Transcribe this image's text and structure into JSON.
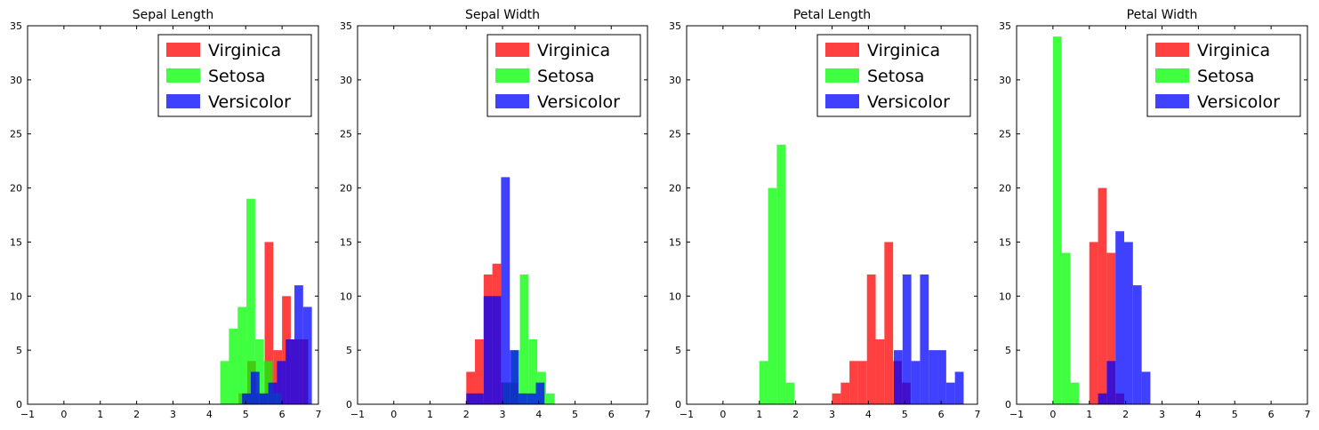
{
  "colors": {
    "Virginica": "#ff0000",
    "Setosa": "#00ff00",
    "Versicolor": "#0000ff"
  },
  "legend_placement": "top-right",
  "chart_data": [
    {
      "type": "histogram",
      "title": "Sepal Length",
      "xlim": [
        -1,
        7
      ],
      "ylim": [
        0,
        35
      ],
      "xticks": [
        "−1",
        "0",
        "1",
        "2",
        "3",
        "4",
        "5",
        "6",
        "7"
      ],
      "yticks": [
        "0",
        "5",
        "10",
        "15",
        "20",
        "25",
        "30",
        "35"
      ],
      "bin_width": 0.24,
      "series": [
        {
          "name": "Virginica",
          "bins": [
            [
              4.8,
              1
            ],
            [
              5.04,
              4
            ],
            [
              5.28,
              1
            ],
            [
              5.52,
              15
            ],
            [
              5.76,
              5
            ],
            [
              6.0,
              10
            ],
            [
              6.24,
              6
            ],
            [
              6.48,
              6
            ]
          ]
        },
        {
          "name": "Setosa",
          "bins": [
            [
              4.3,
              4
            ],
            [
              4.54,
              7
            ],
            [
              4.78,
              9
            ],
            [
              5.02,
              19
            ],
            [
              5.26,
              6
            ],
            [
              5.5,
              4
            ],
            [
              5.74,
              1
            ]
          ]
        },
        {
          "name": "Versicolor",
          "bins": [
            [
              4.9,
              1
            ],
            [
              5.14,
              3
            ],
            [
              5.38,
              1
            ],
            [
              5.62,
              2
            ],
            [
              5.86,
              4
            ],
            [
              6.1,
              6
            ],
            [
              6.34,
              11
            ],
            [
              6.58,
              9
            ]
          ]
        }
      ]
    },
    {
      "type": "histogram",
      "title": "Sepal Width",
      "xlim": [
        -1,
        7
      ],
      "ylim": [
        0,
        35
      ],
      "xticks": [
        "−1",
        "0",
        "1",
        "2",
        "3",
        "4",
        "5",
        "6",
        "7"
      ],
      "yticks": [
        "0",
        "5",
        "10",
        "15",
        "20",
        "25",
        "30",
        "35"
      ],
      "bin_width": 0.24,
      "series": [
        {
          "name": "Virginica",
          "bins": [
            [
              2.0,
              3
            ],
            [
              2.24,
              6
            ],
            [
              2.48,
              12
            ],
            [
              2.72,
              13
            ],
            [
              2.96,
              2
            ],
            [
              3.2,
              2
            ]
          ]
        },
        {
          "name": "Setosa",
          "bins": [
            [
              3.0,
              2
            ],
            [
              3.24,
              5
            ],
            [
              3.48,
              12
            ],
            [
              3.72,
              6
            ],
            [
              3.96,
              3
            ],
            [
              4.2,
              1
            ]
          ]
        },
        {
          "name": "Versicolor",
          "bins": [
            [
              2.0,
              1
            ],
            [
              2.24,
              1
            ],
            [
              2.48,
              10
            ],
            [
              2.72,
              10
            ],
            [
              2.96,
              21
            ],
            [
              3.2,
              5
            ],
            [
              3.44,
              1
            ],
            [
              3.68,
              1
            ],
            [
              3.92,
              2
            ]
          ]
        }
      ]
    },
    {
      "type": "histogram",
      "title": "Petal Length",
      "xlim": [
        -1,
        7
      ],
      "ylim": [
        0,
        35
      ],
      "xticks": [
        "−1",
        "0",
        "1",
        "2",
        "3",
        "4",
        "5",
        "6",
        "7"
      ],
      "yticks": [
        "0",
        "5",
        "10",
        "15",
        "20",
        "25",
        "30",
        "35"
      ],
      "bin_width": 0.24,
      "series": [
        {
          "name": "Virginica",
          "bins": [
            [
              3.0,
              1
            ],
            [
              3.24,
              2
            ],
            [
              3.48,
              4
            ],
            [
              3.72,
              4
            ],
            [
              3.96,
              12
            ],
            [
              4.2,
              6
            ],
            [
              4.44,
              15
            ],
            [
              4.68,
              4
            ],
            [
              4.92,
              2
            ]
          ]
        },
        {
          "name": "Setosa",
          "bins": [
            [
              1.0,
              4
            ],
            [
              1.24,
              20
            ],
            [
              1.48,
              24
            ],
            [
              1.72,
              2
            ]
          ]
        },
        {
          "name": "Versicolor",
          "bins": [
            [
              4.7,
              5
            ],
            [
              4.94,
              12
            ],
            [
              5.18,
              4
            ],
            [
              5.42,
              12
            ],
            [
              5.66,
              5
            ],
            [
              5.9,
              5
            ],
            [
              6.14,
              2
            ],
            [
              6.38,
              3
            ]
          ]
        }
      ]
    },
    {
      "type": "histogram",
      "title": "Petal Width",
      "xlim": [
        -1,
        7
      ],
      "ylim": [
        0,
        35
      ],
      "xticks": [
        "−1",
        "0",
        "1",
        "2",
        "3",
        "4",
        "5",
        "6",
        "7"
      ],
      "yticks": [
        "0",
        "5",
        "10",
        "15",
        "20",
        "25",
        "30",
        "35"
      ],
      "bin_width": 0.24,
      "series": [
        {
          "name": "Virginica",
          "bins": [
            [
              1.0,
              15
            ],
            [
              1.24,
              20
            ],
            [
              1.48,
              14
            ],
            [
              1.72,
              1
            ]
          ]
        },
        {
          "name": "Setosa",
          "bins": [
            [
              0.0,
              34
            ],
            [
              0.24,
              14
            ],
            [
              0.48,
              2
            ]
          ]
        },
        {
          "name": "Versicolor",
          "bins": [
            [
              1.24,
              1
            ],
            [
              1.48,
              4
            ],
            [
              1.72,
              16
            ],
            [
              1.96,
              15
            ],
            [
              2.2,
              11
            ],
            [
              2.44,
              3
            ]
          ]
        }
      ]
    }
  ]
}
